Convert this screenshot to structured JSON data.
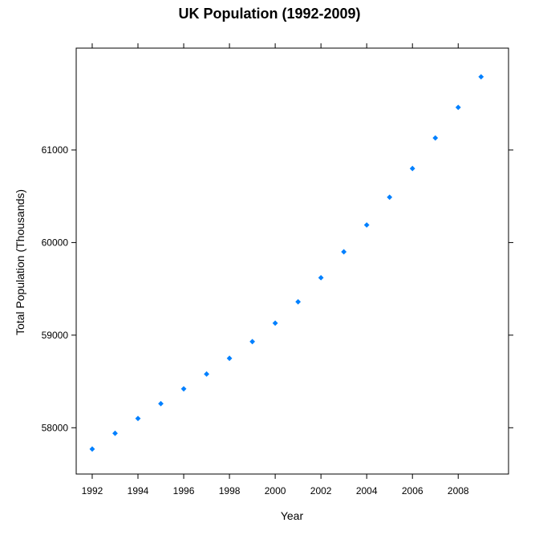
{
  "chart_data": {
    "type": "scatter",
    "title": "UK Population (1992-2009)",
    "xlabel": "Year",
    "ylabel": "Total Population (Thousands)",
    "x": [
      1992,
      1993,
      1994,
      1995,
      1996,
      1997,
      1998,
      1999,
      2000,
      2001,
      2002,
      2003,
      2004,
      2005,
      2006,
      2007,
      2008,
      2009
    ],
    "y": [
      57770,
      57940,
      58100,
      58260,
      58420,
      58580,
      58750,
      58930,
      59130,
      59360,
      59620,
      59900,
      60190,
      60490,
      60800,
      61130,
      61460,
      61790
    ],
    "xlim": [
      1991.3,
      2010.2
    ],
    "ylim": [
      57500,
      62100
    ],
    "x_ticks": [
      1992,
      1994,
      1996,
      1998,
      2000,
      2002,
      2004,
      2006,
      2008
    ],
    "y_ticks": [
      58000,
      59000,
      60000,
      61000
    ],
    "marker_color": "#0080FF",
    "grid": false
  }
}
